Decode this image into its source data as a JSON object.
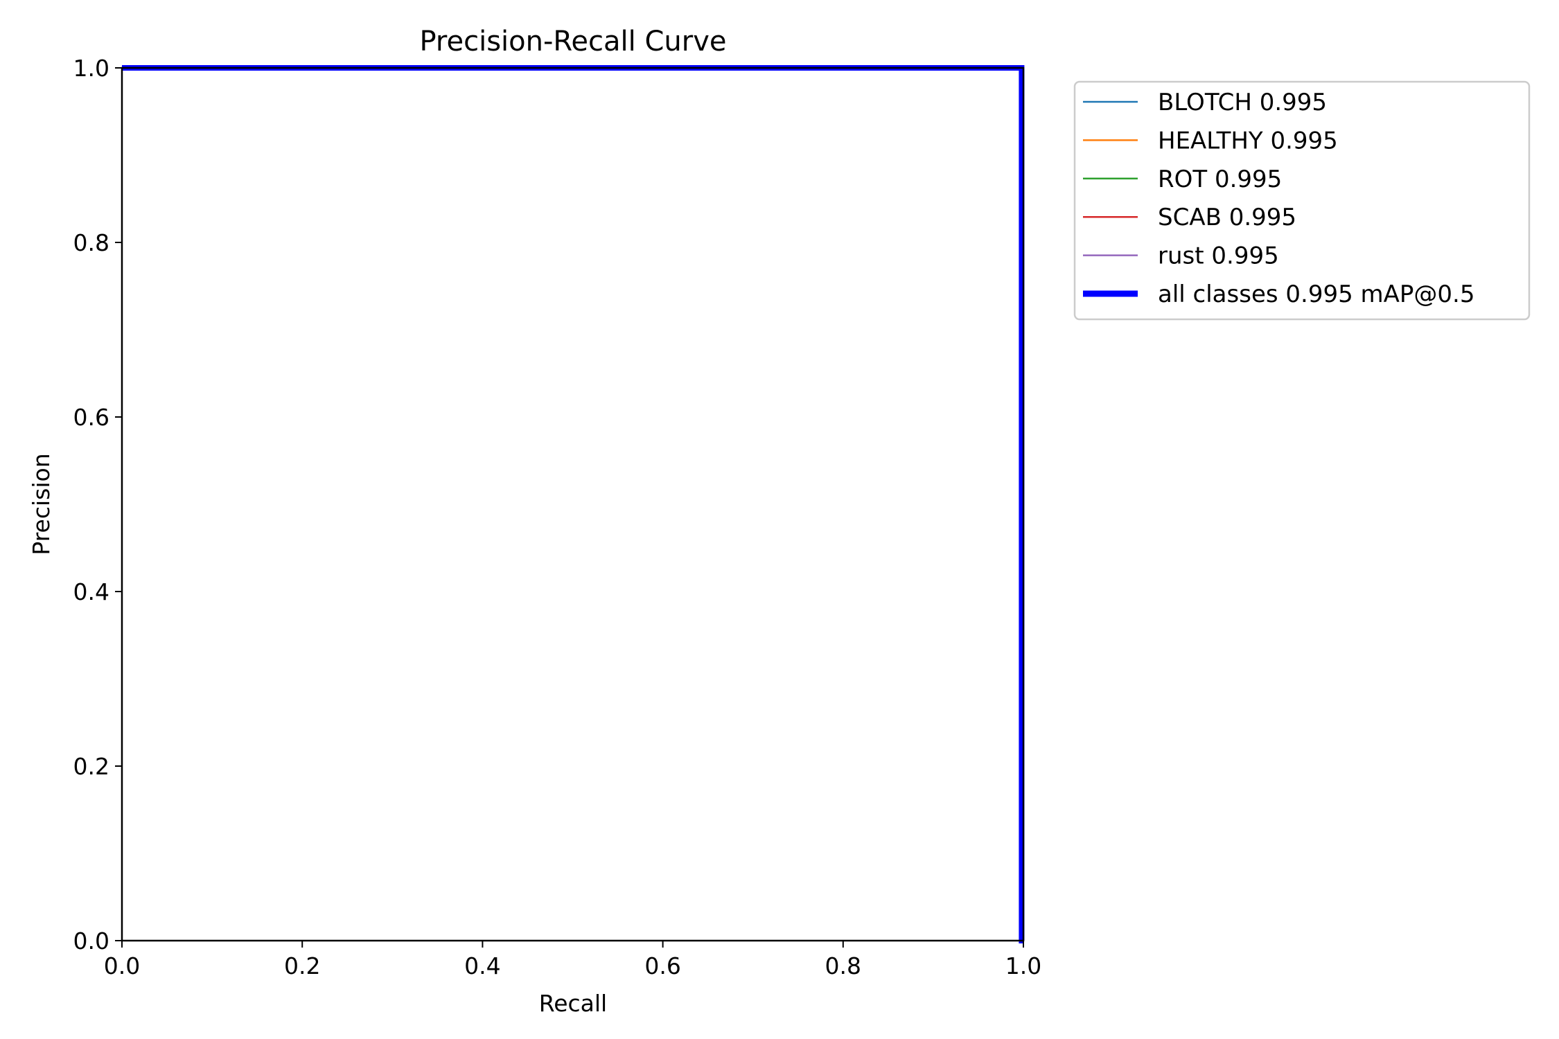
{
  "chart_data": {
    "type": "line",
    "title": "Precision-Recall Curve",
    "xlabel": "Recall",
    "ylabel": "Precision",
    "xlim": [
      0.0,
      1.0
    ],
    "ylim": [
      0.0,
      1.0
    ],
    "xticks": [
      "0.0",
      "0.2",
      "0.4",
      "0.6",
      "0.8",
      "1.0"
    ],
    "yticks": [
      "0.0",
      "0.2",
      "0.4",
      "0.6",
      "0.8",
      "1.0"
    ],
    "grid": false,
    "legend_position": "outside-top-right",
    "series": [
      {
        "name": "BLOTCH 0.995",
        "color": "#1f77b4",
        "x": [
          0.0,
          0.998,
          0.998,
          1.0
        ],
        "y": [
          1.0,
          1.0,
          0.0,
          0.0
        ]
      },
      {
        "name": "HEALTHY 0.995",
        "color": "#ff7f0e",
        "x": [
          0.0,
          0.998,
          0.998,
          1.0
        ],
        "y": [
          1.0,
          1.0,
          0.0,
          0.0
        ]
      },
      {
        "name": "ROT 0.995",
        "color": "#2ca02c",
        "x": [
          0.0,
          0.998,
          0.998,
          1.0
        ],
        "y": [
          1.0,
          1.0,
          0.0,
          0.0
        ]
      },
      {
        "name": "SCAB 0.995",
        "color": "#d62728",
        "x": [
          0.0,
          0.998,
          0.998,
          1.0
        ],
        "y": [
          1.0,
          1.0,
          0.0,
          0.0
        ]
      },
      {
        "name": "rust 0.995",
        "color": "#9467bd",
        "x": [
          0.0,
          0.998,
          0.998,
          1.0
        ],
        "y": [
          1.0,
          1.0,
          0.0,
          0.0
        ]
      },
      {
        "name": "all classes 0.995 mAP@0.5",
        "color": "#0000ff",
        "bold": true,
        "x": [
          0.0,
          0.998,
          0.998,
          1.0
        ],
        "y": [
          1.0,
          1.0,
          0.0,
          0.0
        ]
      }
    ]
  }
}
